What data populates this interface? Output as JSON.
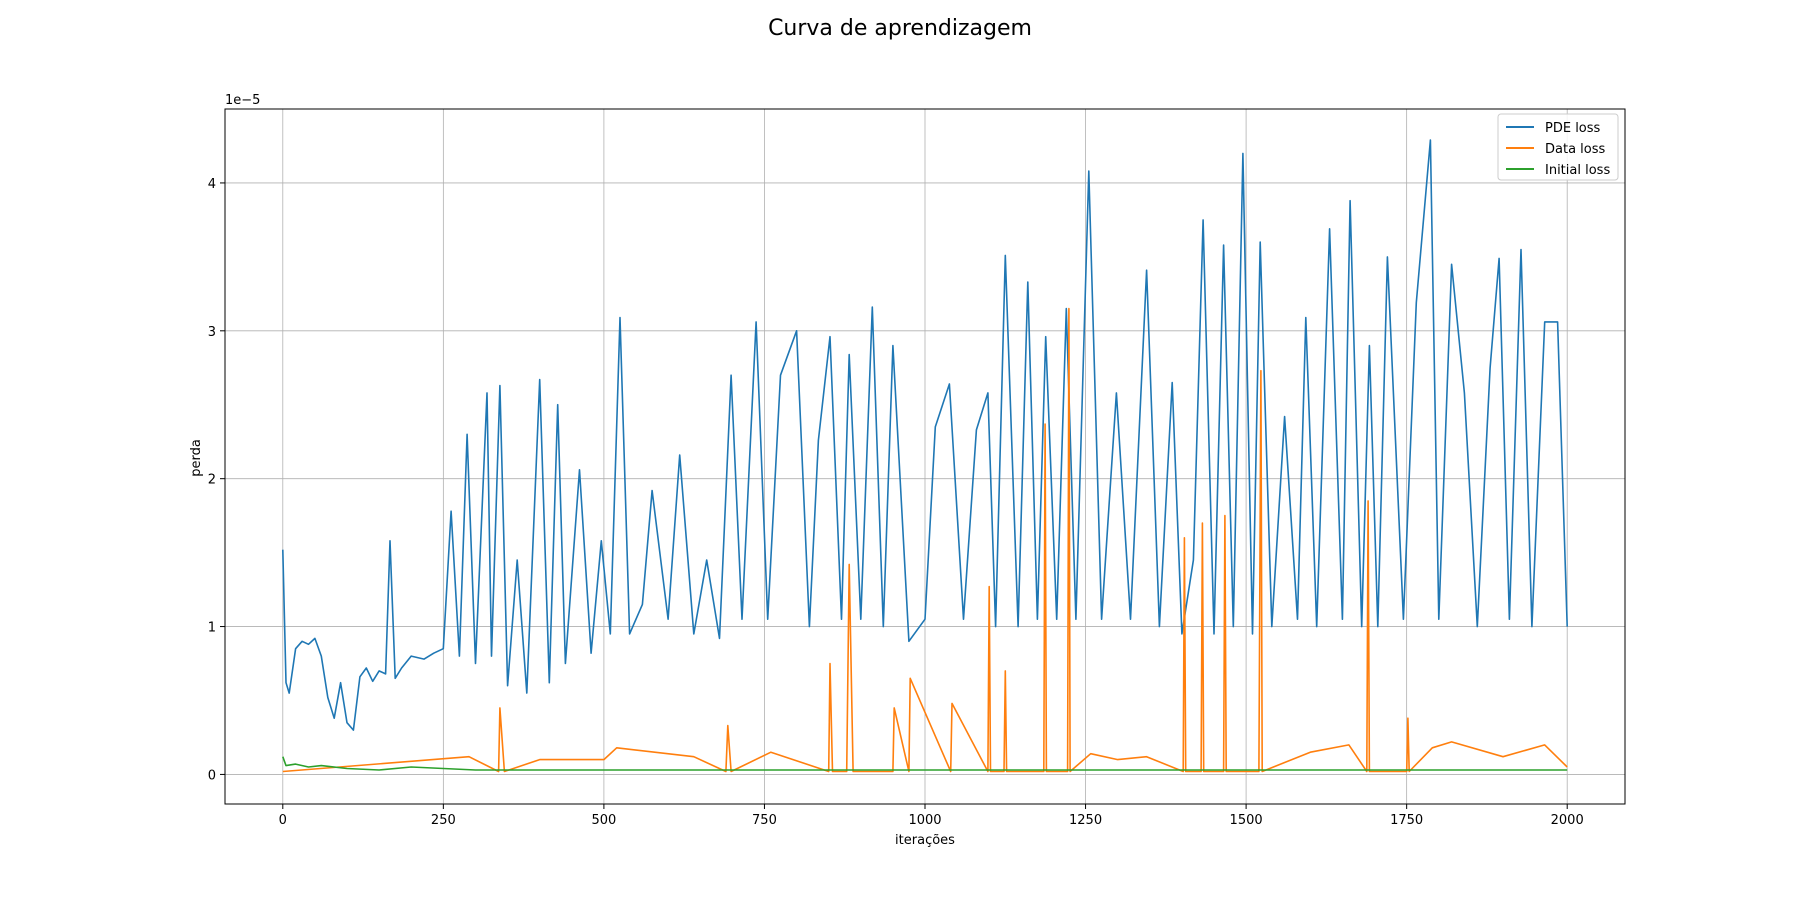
{
  "chart_data": {
    "type": "line",
    "title": "Curva de aprendizagem",
    "xlabel": "iterações",
    "ylabel": "perda",
    "y_offset_label": "1e−5",
    "xlim": [
      -90,
      2090
    ],
    "ylim": [
      -0.2,
      4.5
    ],
    "y_scale_factor": 1e-05,
    "x_ticks": [
      0,
      250,
      500,
      750,
      1000,
      1250,
      1500,
      1750,
      2000
    ],
    "x_tick_labels": [
      "0",
      "250",
      "500",
      "750",
      "1000",
      "1250",
      "1500",
      "1750",
      "2000"
    ],
    "y_ticks": [
      0,
      1,
      2,
      3,
      4
    ],
    "y_tick_labels": [
      "0",
      "1",
      "2",
      "3",
      "4"
    ],
    "grid": true,
    "legend_position": "top-right",
    "series": [
      {
        "name": "PDE loss",
        "color": "#1f77b4",
        "x": [
          0,
          5,
          10,
          20,
          30,
          40,
          50,
          60,
          70,
          80,
          90,
          100,
          110,
          120,
          130,
          140,
          150,
          160,
          167,
          175,
          185,
          200,
          220,
          235,
          250,
          262,
          275,
          287,
          300,
          318,
          325,
          338,
          350,
          365,
          380,
          400,
          415,
          428,
          440,
          462,
          480,
          496,
          510,
          525,
          540,
          560,
          575,
          600,
          618,
          640,
          660,
          680,
          698,
          715,
          737,
          755,
          775,
          800,
          820,
          834,
          852,
          870,
          882,
          900,
          918,
          935,
          950,
          975,
          1000,
          1016,
          1038,
          1060,
          1080,
          1098,
          1110,
          1125,
          1145,
          1160,
          1175,
          1188,
          1205,
          1220,
          1235,
          1255,
          1275,
          1298,
          1320,
          1345,
          1365,
          1385,
          1400,
          1418,
          1433,
          1450,
          1465,
          1480,
          1495,
          1510,
          1522,
          1540,
          1560,
          1580,
          1593,
          1610,
          1630,
          1650,
          1662,
          1680,
          1692,
          1705,
          1720,
          1745,
          1765,
          1787,
          1800,
          1820,
          1840,
          1860,
          1880,
          1894,
          1910,
          1928,
          1945,
          1965,
          1985,
          2000
        ],
        "y": [
          1.52,
          0.62,
          0.55,
          0.85,
          0.9,
          0.88,
          0.92,
          0.8,
          0.52,
          0.38,
          0.62,
          0.35,
          0.3,
          0.66,
          0.72,
          0.63,
          0.7,
          0.68,
          1.58,
          0.65,
          0.72,
          0.8,
          0.78,
          0.82,
          0.85,
          1.78,
          0.8,
          2.3,
          0.75,
          2.58,
          0.8,
          2.63,
          0.6,
          1.45,
          0.55,
          2.67,
          0.62,
          2.5,
          0.75,
          2.06,
          0.82,
          1.58,
          0.95,
          3.09,
          0.95,
          1.15,
          1.92,
          1.05,
          2.16,
          0.95,
          1.45,
          0.92,
          2.7,
          1.05,
          3.06,
          1.05,
          2.7,
          3.0,
          1.0,
          2.26,
          2.96,
          1.05,
          2.84,
          1.05,
          3.16,
          1.0,
          2.9,
          0.9,
          1.05,
          2.35,
          2.64,
          1.05,
          2.33,
          2.58,
          1.0,
          3.51,
          1.0,
          3.33,
          1.05,
          2.96,
          1.05,
          3.15,
          1.05,
          4.08,
          1.05,
          2.58,
          1.05,
          3.41,
          1.0,
          2.65,
          0.95,
          1.45,
          3.75,
          0.95,
          3.58,
          1.0,
          4.2,
          0.95,
          3.6,
          1.0,
          2.42,
          1.05,
          3.09,
          1.0,
          3.69,
          1.05,
          3.88,
          1.0,
          2.9,
          1.0,
          3.5,
          1.05,
          3.19,
          4.29,
          1.05,
          3.45,
          2.58,
          1.0,
          2.75,
          3.49,
          1.05,
          3.55,
          1.0,
          3.06,
          3.06,
          1.0
        ]
      },
      {
        "name": "Data loss",
        "color": "#ff7f0e",
        "x": [
          0,
          290,
          336,
          338,
          345,
          400,
          500,
          520,
          640,
          690,
          693,
          698,
          760,
          850,
          852,
          856,
          878,
          882,
          888,
          950,
          952,
          975,
          977,
          1040,
          1042,
          1098,
          1100,
          1102,
          1123,
          1125,
          1127,
          1185,
          1187,
          1189,
          1222,
          1224,
          1226,
          1258,
          1300,
          1345,
          1402,
          1404,
          1406,
          1430,
          1432,
          1434,
          1465,
          1467,
          1469,
          1520,
          1523,
          1525,
          1600,
          1660,
          1688,
          1690,
          1692,
          1750,
          1752,
          1754,
          1790,
          1820,
          1900,
          1965,
          2000
        ],
        "y": [
          0.02,
          0.12,
          0.02,
          0.45,
          0.02,
          0.1,
          0.1,
          0.18,
          0.12,
          0.02,
          0.33,
          0.02,
          0.15,
          0.02,
          0.75,
          0.02,
          0.02,
          1.42,
          0.02,
          0.02,
          0.45,
          0.02,
          0.65,
          0.02,
          0.48,
          0.02,
          1.27,
          0.02,
          0.02,
          0.7,
          0.02,
          0.02,
          2.37,
          0.02,
          0.02,
          3.15,
          0.02,
          0.14,
          0.1,
          0.12,
          0.02,
          1.6,
          0.02,
          0.02,
          1.7,
          0.02,
          0.02,
          1.75,
          0.02,
          0.02,
          2.73,
          0.02,
          0.15,
          0.2,
          0.02,
          1.85,
          0.02,
          0.02,
          0.38,
          0.02,
          0.18,
          0.22,
          0.12,
          0.2,
          0.05
        ]
      },
      {
        "name": "Initial loss",
        "color": "#2ca02c",
        "x": [
          0,
          5,
          20,
          40,
          60,
          100,
          150,
          200,
          300,
          500,
          800,
          1100,
          1500,
          1800,
          2000
        ],
        "y": [
          0.12,
          0.06,
          0.07,
          0.05,
          0.06,
          0.04,
          0.03,
          0.05,
          0.03,
          0.03,
          0.03,
          0.03,
          0.03,
          0.03,
          0.03
        ]
      }
    ]
  }
}
